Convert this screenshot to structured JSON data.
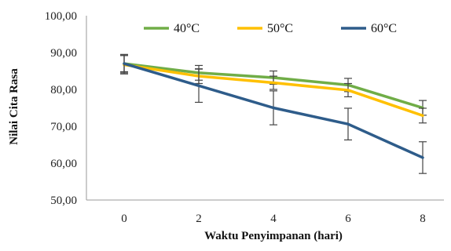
{
  "chart_data": {
    "type": "line",
    "title": "",
    "xlabel": "Waktu Penyimpanan (hari)",
    "ylabel": "Nilai Cita Rasa",
    "x": [
      0,
      2,
      4,
      6,
      8
    ],
    "x_tick_labels": [
      "0",
      "2",
      "4",
      "6",
      "8"
    ],
    "y_tick_labels": [
      "50,00",
      "60,00",
      "70,00",
      "80,00",
      "90,00",
      "100,00"
    ],
    "ylim": [
      50,
      100
    ],
    "grid": false,
    "legend_position": "top",
    "series": [
      {
        "name": "40°C",
        "color": "#70AD47",
        "values": [
          87.0,
          84.5,
          83.2,
          81.2,
          75.0
        ],
        "error": [
          2.5,
          2.0,
          1.8,
          1.8,
          2.0
        ]
      },
      {
        "name": "50°C",
        "color": "#FFC000",
        "values": [
          86.7,
          83.6,
          81.8,
          79.8,
          72.9
        ],
        "error": [
          2.5,
          2.0,
          1.8,
          1.8,
          2.0
        ]
      },
      {
        "name": "60°C",
        "color": "#2E5C8A",
        "values": [
          87.0,
          81.0,
          75.0,
          70.6,
          61.5
        ],
        "error": [
          2.2,
          4.5,
          4.6,
          4.3,
          4.3
        ]
      }
    ]
  }
}
